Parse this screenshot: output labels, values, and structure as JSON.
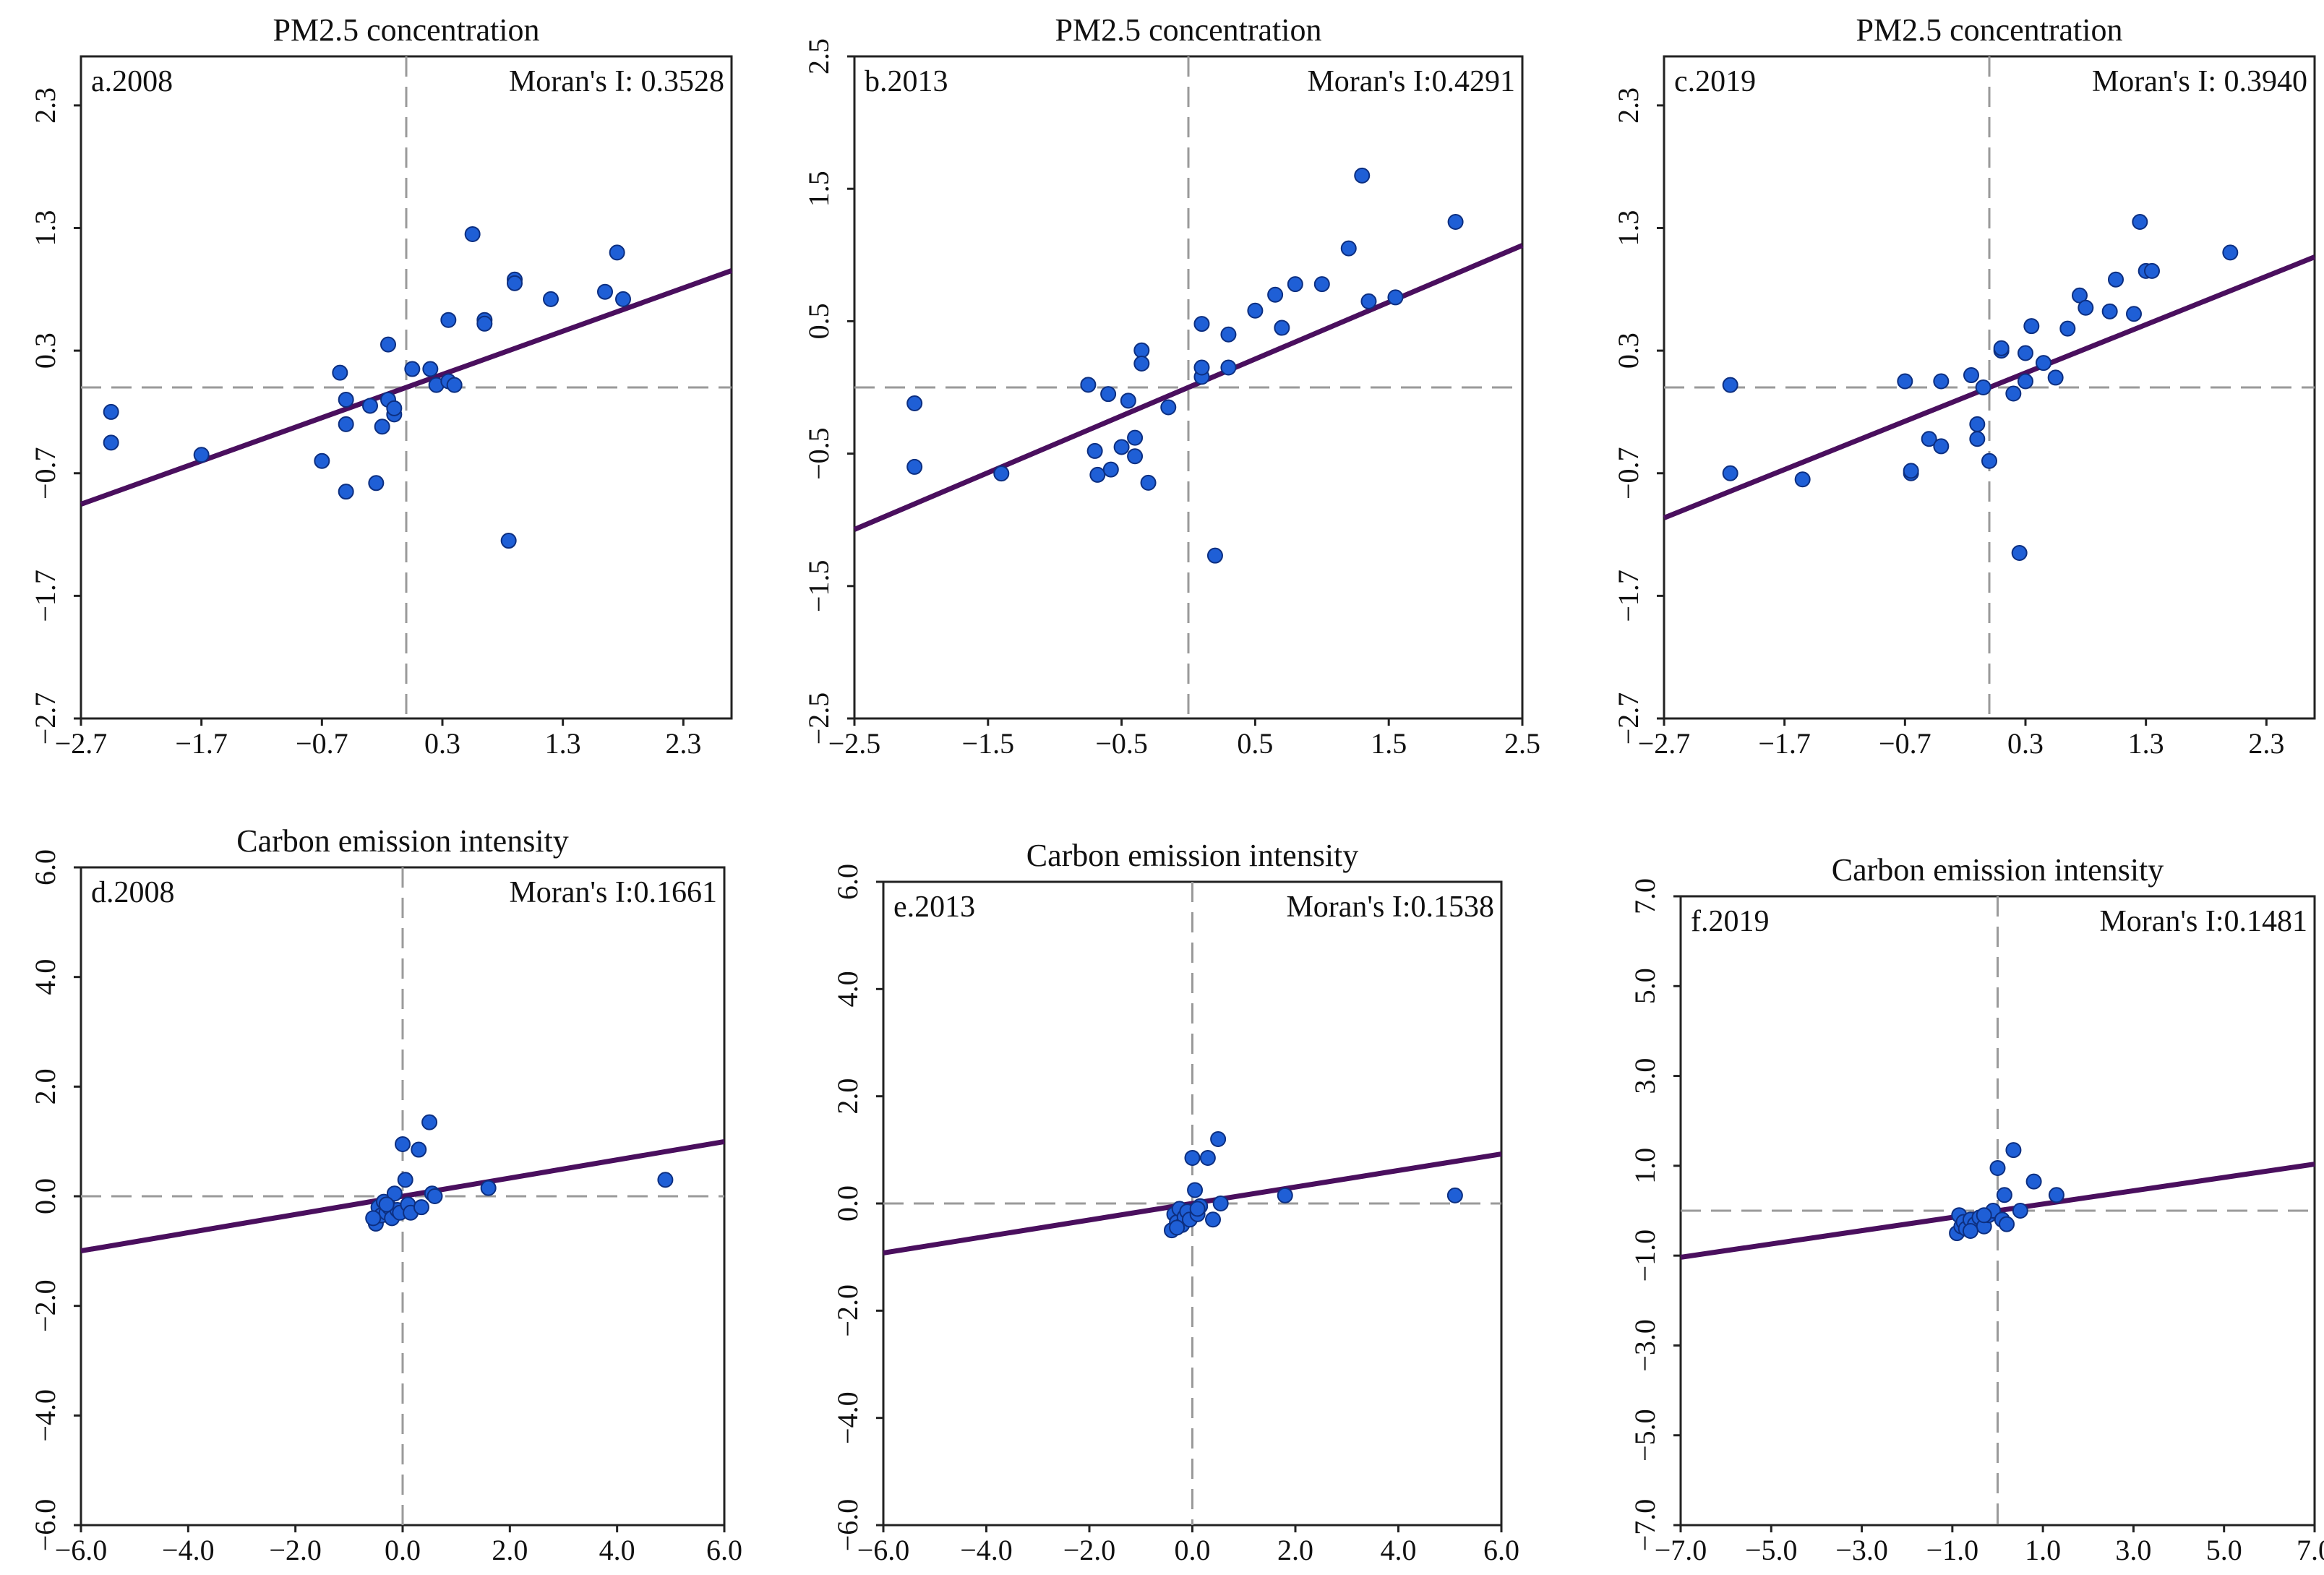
{
  "figure": {
    "point_color": "#1f5fd6",
    "point_edge": "#0d2f80",
    "line_color": "#4a0f5e",
    "frame_color": "#222222",
    "guide_color": "#9a9a9a"
  },
  "chart_data": [
    {
      "type": "scatter",
      "title": "PM2.5 concentration",
      "panel_label": "a.2008",
      "moran_text": "Moran's I: 0.3528",
      "xlim": [
        -2.7,
        2.7
      ],
      "ylim": [
        -2.7,
        2.7
      ],
      "xticks": [
        -2.7,
        -1.7,
        -0.7,
        0.3,
        1.3,
        2.3
      ],
      "yticks": [
        -2.7,
        -1.7,
        -0.7,
        0.3,
        1.3,
        2.3
      ],
      "xtick_labels": [
        "−2.7",
        "−1.7",
        "−0.7",
        "0.3",
        "1.3",
        "2.3"
      ],
      "ytick_labels": [
        "−2.7",
        "−1.7",
        "−0.7",
        "0.3",
        "1.3",
        "2.3"
      ],
      "guide_x": 0.0,
      "guide_y": 0.0,
      "fit_line": {
        "slope": 0.3528,
        "intercept": 0.0
      },
      "x": [
        -2.45,
        -2.45,
        -1.7,
        -0.7,
        -0.55,
        -0.5,
        -0.5,
        -0.5,
        -0.3,
        -0.25,
        -0.2,
        -0.15,
        -0.15,
        -0.1,
        -0.1,
        0.05,
        0.2,
        0.25,
        0.35,
        0.35,
        0.4,
        0.55,
        0.65,
        0.65,
        0.9,
        0.9,
        1.2,
        1.65,
        1.75,
        1.8,
        0.85
      ],
      "y": [
        -0.2,
        -0.45,
        -0.55,
        -0.6,
        0.12,
        -0.1,
        -0.3,
        -0.85,
        -0.15,
        -0.78,
        -0.32,
        0.35,
        -0.1,
        -0.22,
        -0.17,
        0.15,
        0.15,
        0.02,
        0.05,
        0.55,
        0.02,
        1.25,
        0.55,
        0.52,
        0.88,
        0.85,
        0.72,
        0.78,
        1.1,
        0.72,
        -1.25
      ]
    },
    {
      "type": "scatter",
      "title": "PM2.5 concentration",
      "panel_label": "b.2013",
      "moran_text": "Moran's I:0.4291",
      "xlim": [
        -2.5,
        2.5
      ],
      "ylim": [
        -2.5,
        2.5
      ],
      "xticks": [
        -2.5,
        -1.5,
        -0.5,
        0.5,
        1.5,
        2.5
      ],
      "yticks": [
        -2.5,
        -1.5,
        -0.5,
        0.5,
        1.5,
        2.5
      ],
      "xtick_labels": [
        "−2.5",
        "−1.5",
        "−0.5",
        "0.5",
        "1.5",
        "2.5"
      ],
      "ytick_labels": [
        "−2.5",
        "−1.5",
        "−0.5",
        "0.5",
        "1.5",
        "2.5"
      ],
      "guide_x": 0.0,
      "guide_y": 0.0,
      "fit_line": {
        "slope": 0.4291,
        "intercept": 0.0
      },
      "x": [
        -2.05,
        -2.05,
        -1.4,
        -0.75,
        -0.7,
        -0.68,
        -0.6,
        -0.58,
        -0.5,
        -0.45,
        -0.4,
        -0.4,
        -0.35,
        -0.35,
        -0.3,
        -0.15,
        0.1,
        0.1,
        0.1,
        0.2,
        0.3,
        0.3,
        0.5,
        0.65,
        0.7,
        0.8,
        1.0,
        1.2,
        1.3,
        1.35,
        1.55,
        2.0
      ],
      "y": [
        -0.12,
        -0.6,
        -0.65,
        0.02,
        -0.48,
        -0.66,
        -0.05,
        -0.62,
        -0.45,
        -0.1,
        -0.38,
        -0.52,
        0.28,
        0.18,
        -0.72,
        -0.15,
        0.48,
        0.08,
        0.15,
        -1.27,
        0.4,
        0.15,
        0.58,
        0.7,
        0.45,
        0.78,
        0.78,
        1.05,
        1.6,
        0.65,
        0.68,
        1.25
      ]
    },
    {
      "type": "scatter",
      "title": "PM2.5 concentration",
      "panel_label": "c.2019",
      "moran_text": "Moran's I: 0.3940",
      "xlim": [
        -2.7,
        2.7
      ],
      "ylim": [
        -2.7,
        2.7
      ],
      "xticks": [
        -2.7,
        -1.7,
        -0.7,
        0.3,
        1.3,
        2.3
      ],
      "yticks": [
        -2.7,
        -1.7,
        -0.7,
        0.3,
        1.3,
        2.3
      ],
      "xtick_labels": [
        "−2.7",
        "−1.7",
        "−0.7",
        "0.3",
        "1.3",
        "2.3"
      ],
      "ytick_labels": [
        "−2.7",
        "−1.7",
        "−0.7",
        "0.3",
        "1.3",
        "2.3"
      ],
      "guide_x": 0.0,
      "guide_y": 0.0,
      "fit_line": {
        "slope": 0.394,
        "intercept": 0.0
      },
      "x": [
        -2.15,
        -2.15,
        -1.55,
        -0.7,
        -0.65,
        -0.65,
        -0.5,
        -0.4,
        -0.4,
        -0.15,
        -0.1,
        -0.1,
        -0.05,
        0.0,
        0.1,
        0.1,
        0.2,
        0.25,
        0.3,
        0.3,
        0.35,
        0.45,
        0.55,
        0.65,
        0.75,
        0.8,
        1.0,
        1.05,
        1.2,
        1.25,
        1.3,
        1.35,
        2.0
      ],
      "y": [
        0.02,
        -0.7,
        -0.75,
        0.05,
        -0.7,
        -0.68,
        -0.42,
        0.05,
        -0.48,
        0.1,
        -0.3,
        -0.42,
        0.0,
        -0.6,
        0.3,
        0.32,
        -0.05,
        -1.35,
        0.28,
        0.05,
        0.5,
        0.2,
        0.08,
        0.48,
        0.75,
        0.65,
        0.62,
        0.88,
        0.6,
        1.35,
        0.95,
        0.95,
        1.1
      ]
    },
    {
      "type": "scatter",
      "title": "Carbon emission intensity",
      "panel_label": "d.2008",
      "moran_text": "Moran's I:0.1661",
      "xlim": [
        -6.0,
        6.0
      ],
      "ylim": [
        -6.0,
        6.0
      ],
      "xticks": [
        -6.0,
        -4.0,
        -2.0,
        0.0,
        2.0,
        4.0,
        6.0
      ],
      "yticks": [
        -6.0,
        -4.0,
        -2.0,
        0.0,
        2.0,
        4.0,
        6.0
      ],
      "xtick_labels": [
        "−6.0",
        "−4.0",
        "−2.0",
        "0.0",
        "2.0",
        "4.0",
        "6.0"
      ],
      "ytick_labels": [
        "−6.0",
        "−4.0",
        "−2.0",
        "0.0",
        "2.0",
        "4.0",
        "6.0"
      ],
      "guide_x": 0.0,
      "guide_y": 0.0,
      "fit_line": {
        "slope": 0.1661,
        "intercept": 0.0
      },
      "x": [
        -0.5,
        -0.45,
        -0.4,
        -0.35,
        -0.3,
        -0.25,
        -0.2,
        -0.15,
        -0.1,
        -0.05,
        0.0,
        0.05,
        0.1,
        0.15,
        0.3,
        0.35,
        0.5,
        0.55,
        0.6,
        1.6,
        4.9,
        -0.55,
        -0.3
      ],
      "y": [
        -0.5,
        -0.2,
        -0.35,
        -0.1,
        -0.3,
        -0.2,
        -0.4,
        0.05,
        -0.25,
        -0.3,
        0.95,
        0.3,
        -0.15,
        -0.3,
        0.85,
        -0.2,
        1.35,
        0.05,
        0.0,
        0.15,
        0.3,
        -0.4,
        -0.15
      ]
    },
    {
      "type": "scatter",
      "title": "Carbon emission intensity",
      "panel_label": "e.2013",
      "moran_text": "Moran's I:0.1538",
      "xlim": [
        -6.0,
        6.0
      ],
      "ylim": [
        -6.0,
        6.0
      ],
      "xticks": [
        -6.0,
        -4.0,
        -2.0,
        0.0,
        2.0,
        4.0,
        6.0
      ],
      "yticks": [
        -6.0,
        -4.0,
        -2.0,
        0.0,
        2.0,
        4.0,
        6.0
      ],
      "xtick_labels": [
        "−6.0",
        "−4.0",
        "−2.0",
        "0.0",
        "2.0",
        "4.0",
        "6.0"
      ],
      "ytick_labels": [
        "−6.0",
        "−4.0",
        "−2.0",
        "0.0",
        "2.0",
        "4.0",
        "6.0"
      ],
      "guide_x": 0.0,
      "guide_y": 0.0,
      "fit_line": {
        "slope": 0.1538,
        "intercept": 0.0
      },
      "x": [
        -0.4,
        -0.35,
        -0.3,
        -0.25,
        -0.2,
        -0.15,
        -0.1,
        -0.05,
        0.0,
        0.05,
        0.1,
        0.15,
        0.3,
        0.4,
        0.5,
        0.55,
        1.8,
        5.1,
        -0.3,
        0.1
      ],
      "y": [
        -0.5,
        -0.2,
        -0.35,
        -0.1,
        -0.4,
        -0.25,
        -0.15,
        -0.3,
        0.85,
        0.25,
        -0.2,
        -0.05,
        0.85,
        -0.3,
        1.2,
        0.0,
        0.15,
        0.15,
        -0.45,
        -0.1
      ]
    },
    {
      "type": "scatter",
      "title": "Carbon emission intensity",
      "panel_label": "f.2019",
      "moran_text": "Moran's I:0.1481",
      "xlim": [
        -7.0,
        7.0
      ],
      "ylim": [
        -7.0,
        7.0
      ],
      "xticks": [
        -7.0,
        -5.0,
        -3.0,
        -1.0,
        1.0,
        3.0,
        5.0,
        7.0
      ],
      "yticks": [
        -7.0,
        -5.0,
        -3.0,
        -1.0,
        1.0,
        3.0,
        5.0,
        7.0
      ],
      "xtick_labels": [
        "−7.0",
        "−5.0",
        "−3.0",
        "−1.0",
        "1.0",
        "3.0",
        "5.0",
        "7.0"
      ],
      "ytick_labels": [
        "−7.0",
        "−5.0",
        "−3.0",
        "−1.0",
        "1.0",
        "3.0",
        "5.0",
        "7.0"
      ],
      "guide_x": 0.0,
      "guide_y": 0.0,
      "fit_line": {
        "slope": 0.1481,
        "intercept": 0.0
      },
      "x": [
        -0.9,
        -0.85,
        -0.8,
        -0.75,
        -0.7,
        -0.6,
        -0.5,
        -0.4,
        -0.3,
        -0.2,
        -0.1,
        0.0,
        0.1,
        0.15,
        0.2,
        0.35,
        0.5,
        0.8,
        1.3,
        -0.6,
        -0.3
      ],
      "y": [
        -0.5,
        -0.1,
        -0.35,
        -0.25,
        -0.4,
        -0.2,
        -0.3,
        -0.15,
        -0.35,
        -0.1,
        0.0,
        0.95,
        -0.2,
        0.35,
        -0.3,
        1.35,
        0.0,
        0.65,
        0.35,
        -0.45,
        -0.1
      ]
    }
  ]
}
